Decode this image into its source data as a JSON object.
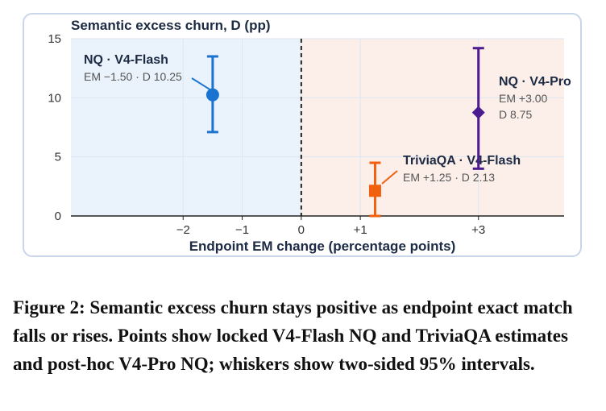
{
  "chart_data": {
    "type": "scatter",
    "title": "Semantic excess churn, D (pp)",
    "xlabel": "Endpoint EM change (percentage points)",
    "ylabel": "",
    "xlim": [
      -3.9,
      4.45
    ],
    "ylim": [
      0,
      15
    ],
    "x_ticks": [
      {
        "value": -2,
        "label": "−2"
      },
      {
        "value": -1,
        "label": "−1"
      },
      {
        "value": 0,
        "label": "0"
      },
      {
        "value": 1,
        "label": "+1"
      },
      {
        "value": 3,
        "label": "+3"
      }
    ],
    "y_ticks": [
      {
        "value": 0,
        "label": "0"
      },
      {
        "value": 5,
        "label": "5"
      },
      {
        "value": 10,
        "label": "10"
      },
      {
        "value": 15,
        "label": "15"
      }
    ],
    "zero_line_x": 0,
    "regions": {
      "negative_color": "#eaf3fc",
      "positive_color": "#fcefe9"
    },
    "series": [
      {
        "label": "NQ · V4-Flash",
        "detail_lines": [
          "EM −1.50 · D 10.25"
        ],
        "x": -1.5,
        "y": 10.25,
        "lo": 7.1,
        "hi": 13.5,
        "marker": "circle",
        "color": "#1a73d1"
      },
      {
        "label": "TriviaQA · V4-Flash",
        "detail_lines": [
          "EM +1.25 · D 2.13"
        ],
        "x": 1.25,
        "y": 2.13,
        "lo": 0.0,
        "hi": 4.5,
        "marker": "square",
        "color": "#f0600f"
      },
      {
        "label": "NQ · V4-Pro",
        "detail_lines": [
          "EM +3.00",
          "D 8.75"
        ],
        "x": 3.0,
        "y": 8.75,
        "lo": 4.0,
        "hi": 14.2,
        "marker": "diamond",
        "color": "#4b1b8f"
      }
    ]
  },
  "caption": "Figure 2: Semantic excess churn stays positive as endpoint exact match falls or rises. Points show locked V4-Flash NQ and TriviaQA estimates and post-hoc V4-Pro NQ; whiskers show two-sided 95% intervals."
}
